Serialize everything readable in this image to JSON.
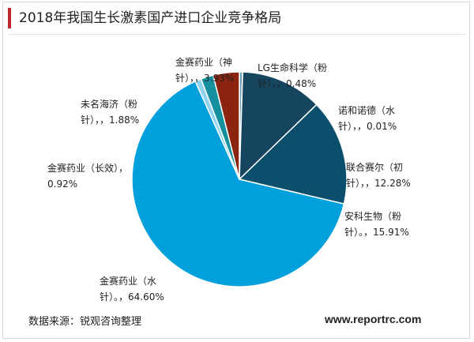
{
  "title": "2018年我国生长激素国产进口企业竞争格局",
  "footer": {
    "source": "数据来源：锐观咨询整理",
    "website": "www.reportrc.com"
  },
  "chart_data": {
    "type": "pie",
    "start_angle_deg": 0,
    "direction": "clockwise",
    "slices": [
      {
        "name": "LG生命科学（粉针）",
        "value": 0.48,
        "color": "#6a9cb4",
        "label_lines": [
          "LG生命科学（粉",
          "针），，0.48%"
        ]
      },
      {
        "name": "诺和诺德（水针）",
        "value": 0.01,
        "color": "#2f5470",
        "label_lines": [
          "诺和诺德（水",
          "针），，0.01%"
        ]
      },
      {
        "name": "联合赛尔（初针）",
        "value": 12.28,
        "color": "#16465f",
        "label_lines": [
          "联合赛尔（初",
          "针），，12.28%"
        ]
      },
      {
        "name": "安科生物（粉针）",
        "value": 15.91,
        "color": "#0b4f6c",
        "label_lines": [
          "安科生物（粉",
          "针）。，15.91%"
        ]
      },
      {
        "name": "金赛药业（水针）",
        "value": 64.6,
        "color": "#00a0dc",
        "label_lines": [
          "金赛药业（水",
          "针）。，64.60%"
        ]
      },
      {
        "name": "金赛药业（长效）",
        "value": 0.92,
        "color": "#8fd3ee",
        "label_lines": [
          "金赛药业（长效），",
          "0.92%"
        ]
      },
      {
        "name": "未名海济（粉针）",
        "value": 1.88,
        "color": "#168f9e",
        "label_lines": [
          "未名海济（粉",
          "针），，1.88%"
        ]
      },
      {
        "name": "金赛药业（神针）",
        "value": 3.93,
        "color": "#8b2510",
        "label_lines": [
          "金赛药业（神",
          "针），，3.93%"
        ]
      }
    ]
  }
}
